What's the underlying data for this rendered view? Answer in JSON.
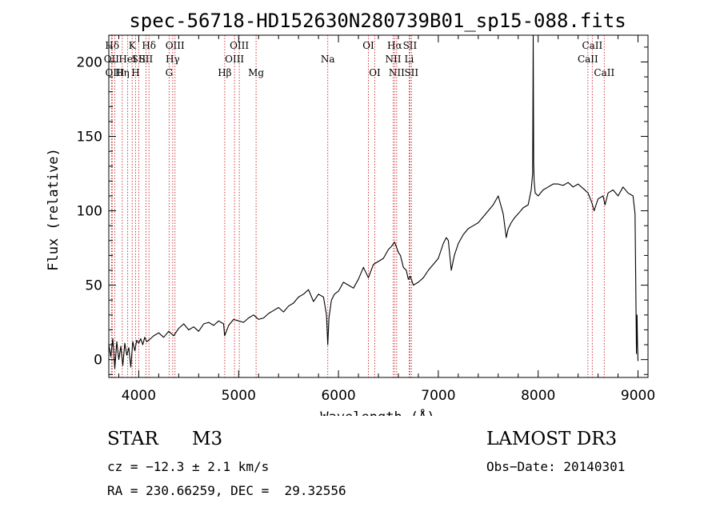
{
  "chart_data": {
    "type": "line",
    "title": "spec-56718-HD152630N280739B01_sp15-088.fits",
    "xlabel": "Wavelength (Å)",
    "ylabel": "Flux (relative)",
    "xlim": [
      3700,
      9100
    ],
    "ylim": [
      -12,
      218
    ],
    "xticks": [
      4000,
      5000,
      6000,
      7000,
      8000,
      9000
    ],
    "yticks": [
      0,
      50,
      100,
      150,
      200
    ],
    "series": [
      {
        "name": "spectrum",
        "x": [
          3700,
          3720,
          3740,
          3760,
          3780,
          3800,
          3820,
          3840,
          3860,
          3880,
          3900,
          3920,
          3940,
          3960,
          3980,
          4000,
          4020,
          4040,
          4060,
          4080,
          4100,
          4150,
          4200,
          4250,
          4300,
          4350,
          4400,
          4450,
          4500,
          4550,
          4600,
          4650,
          4700,
          4750,
          4800,
          4850,
          4860,
          4900,
          4950,
          5000,
          5050,
          5100,
          5150,
          5200,
          5250,
          5300,
          5350,
          5400,
          5450,
          5500,
          5550,
          5600,
          5650,
          5700,
          5750,
          5800,
          5850,
          5880,
          5893,
          5905,
          5930,
          5960,
          6000,
          6050,
          6100,
          6150,
          6200,
          6250,
          6300,
          6350,
          6400,
          6450,
          6500,
          6530,
          6563,
          6600,
          6620,
          6650,
          6680,
          6700,
          6720,
          6750,
          6800,
          6850,
          6900,
          6950,
          7000,
          7030,
          7050,
          7080,
          7100,
          7130,
          7160,
          7200,
          7250,
          7300,
          7350,
          7400,
          7450,
          7500,
          7550,
          7600,
          7650,
          7680,
          7700,
          7730,
          7760,
          7800,
          7850,
          7900,
          7930,
          7945,
          7950,
          7955,
          7960,
          7970,
          8000,
          8050,
          8100,
          8150,
          8200,
          8250,
          8300,
          8350,
          8400,
          8450,
          8500,
          8540,
          8560,
          8600,
          8650,
          8670,
          8700,
          8750,
          8800,
          8850,
          8900,
          8950,
          8970,
          8985,
          8990,
          8995,
          9000
        ],
        "y": [
          10,
          2,
          14,
          -6,
          12,
          0,
          9,
          -4,
          11,
          3,
          8,
          -5,
          12,
          6,
          13,
          11,
          14,
          10,
          15,
          12,
          13,
          16,
          18,
          15,
          19,
          16,
          21,
          24,
          20,
          22,
          19,
          24,
          25,
          23,
          26,
          24,
          16,
          23,
          27,
          26,
          25,
          28,
          30,
          27,
          28,
          31,
          33,
          35,
          32,
          36,
          38,
          42,
          44,
          47,
          39,
          44,
          42,
          30,
          10,
          28,
          40,
          44,
          46,
          52,
          50,
          48,
          54,
          62,
          55,
          64,
          66,
          68,
          74,
          76,
          79,
          72,
          70,
          62,
          60,
          54,
          56,
          50,
          52,
          55,
          60,
          64,
          68,
          74,
          78,
          82,
          80,
          60,
          70,
          78,
          84,
          88,
          90,
          92,
          96,
          100,
          104,
          110,
          98,
          82,
          88,
          92,
          95,
          98,
          102,
          104,
          114,
          125,
          218,
          132,
          120,
          112,
          110,
          114,
          116,
          118,
          118,
          117,
          119,
          116,
          118,
          115,
          112,
          105,
          100,
          108,
          110,
          104,
          112,
          114,
          110,
          116,
          112,
          110,
          98,
          4,
          30,
          10,
          -1
        ],
        "color": "#000000"
      }
    ],
    "line_ids": [
      {
        "label": "Hδ",
        "wavelength": 3734,
        "row": 1
      },
      {
        "label": "OII",
        "wavelength": 3727,
        "row": 2
      },
      {
        "label": "OIII",
        "wavelength": 3760,
        "row": 3
      },
      {
        "label": "HeI",
        "wavelength": 3889,
        "row": 2
      },
      {
        "label": "Hη",
        "wavelength": 3835,
        "row": 3
      },
      {
        "label": "K",
        "wavelength": 3934,
        "row": 1
      },
      {
        "label": "SII",
        "wavelength": 4000,
        "row": 2
      },
      {
        "label": "H",
        "wavelength": 3968,
        "row": 3
      },
      {
        "label": "Hδ",
        "wavelength": 4102,
        "row": 1
      },
      {
        "label": "SII",
        "wavelength": 4072,
        "row": 2
      },
      {
        "label": "OIII",
        "wavelength": 4363,
        "row": 1
      },
      {
        "label": "Hγ",
        "wavelength": 4340,
        "row": 2
      },
      {
        "label": "G",
        "wavelength": 4304,
        "row": 3
      },
      {
        "label": "Hβ",
        "wavelength": 4861,
        "row": 3
      },
      {
        "label": "OIII",
        "wavelength": 5007,
        "row": 1
      },
      {
        "label": "OIII",
        "wavelength": 4959,
        "row": 2
      },
      {
        "label": "Mg",
        "wavelength": 5175,
        "row": 3
      },
      {
        "label": "Na",
        "wavelength": 5893,
        "row": 2
      },
      {
        "label": "OI",
        "wavelength": 6300,
        "row": 1
      },
      {
        "label": "OI",
        "wavelength": 6364,
        "row": 3
      },
      {
        "label": "Hα",
        "wavelength": 6563,
        "row": 1
      },
      {
        "label": "NII",
        "wavelength": 6548,
        "row": 2
      },
      {
        "label": "NII",
        "wavelength": 6583,
        "row": 3
      },
      {
        "label": "SII",
        "wavelength": 6716,
        "row": 1
      },
      {
        "label": "Li",
        "wavelength": 6708,
        "row": 2
      },
      {
        "label": "SII",
        "wavelength": 6731,
        "row": 3
      },
      {
        "label": "CaII",
        "wavelength": 8542,
        "row": 1
      },
      {
        "label": "CaII",
        "wavelength": 8498,
        "row": 2
      },
      {
        "label": "CaII",
        "wavelength": 8662,
        "row": 3
      }
    ]
  },
  "info": {
    "class_label": "STAR",
    "subclass": "M3",
    "survey": "LAMOST DR3",
    "cz": "cz = −12.3 ± 2.1 km/s",
    "obs_date": "Obs−Date: 20140301",
    "coords": "RA = 230.66259, DEC =  29.32556"
  },
  "colors": {
    "spectrum": "#000000",
    "line_markers": "#c8282d",
    "axis": "#000000"
  }
}
